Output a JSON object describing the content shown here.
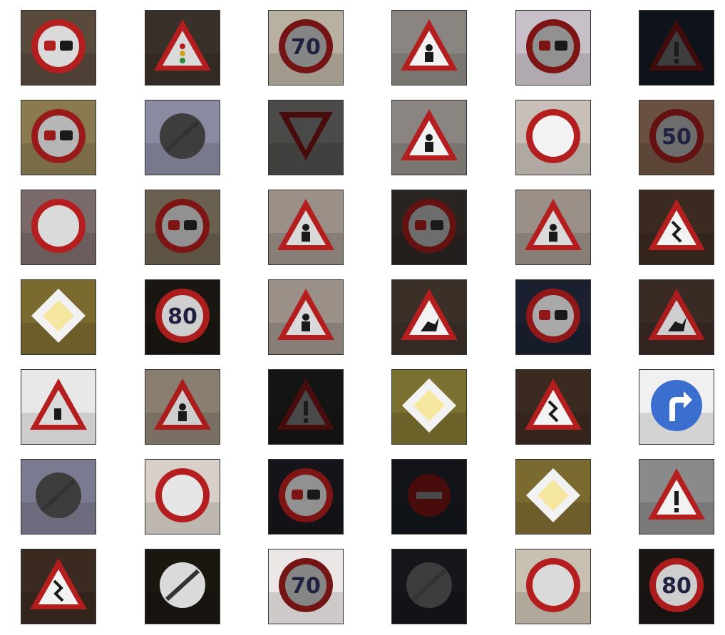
{
  "grid": {
    "rows": 7,
    "cols": 6,
    "cells": [
      {
        "sign": "no-overtaking-trucks",
        "bg": "#5a4a3c",
        "light": 0.9
      },
      {
        "sign": "traffic-signals",
        "bg": "#3a302a",
        "light": 0.9
      },
      {
        "sign": "speed-limit",
        "text": "70",
        "bg": "#b8b0a0",
        "light": 0.55
      },
      {
        "sign": "children-crossing",
        "bg": "#8a8580",
        "light": 1.0
      },
      {
        "sign": "no-overtaking-trucks",
        "bg": "#c8c0c8",
        "light": 0.6
      },
      {
        "sign": "general-caution",
        "bg": "#0f141c",
        "light": 0.25
      },
      {
        "sign": "no-overtaking",
        "bg": "#8a7a50",
        "light": 0.75
      },
      {
        "sign": "end-of-limits",
        "bg": "#8a8aa0",
        "light": 0.25
      },
      {
        "sign": "yield",
        "bg": "#4a4a48",
        "light": 0.3
      },
      {
        "sign": "children-crossing",
        "bg": "#8a8580",
        "light": 1.0
      },
      {
        "sign": "no-vehicles",
        "bg": "#c8c0b8",
        "light": 1.0
      },
      {
        "sign": "speed-limit",
        "text": "50",
        "bg": "#6a5040",
        "light": 0.45
      },
      {
        "sign": "no-vehicles",
        "bg": "#7a6a6a",
        "light": 0.9
      },
      {
        "sign": "no-overtaking",
        "bg": "#6a6050",
        "light": 0.6
      },
      {
        "sign": "children-crossing",
        "bg": "#9a9088",
        "light": 0.9
      },
      {
        "sign": "no-overtaking",
        "bg": "#2a2420",
        "light": 0.45
      },
      {
        "sign": "children-crossing",
        "bg": "#9a9088",
        "light": 0.9
      },
      {
        "sign": "double-curve",
        "bg": "#3a2a20",
        "light": 1.0
      },
      {
        "sign": "priority-road",
        "bg": "#7a6a30",
        "light": 1.0
      },
      {
        "sign": "speed-limit",
        "text": "80",
        "bg": "#1a1612",
        "light": 0.85
      },
      {
        "sign": "children-crossing",
        "bg": "#9a9088",
        "light": 0.9
      },
      {
        "sign": "wild-animals",
        "bg": "#3a3028",
        "light": 1.0
      },
      {
        "sign": "no-overtaking",
        "bg": "#1a2030",
        "light": 0.7
      },
      {
        "sign": "wild-animals",
        "bg": "#3a2a24",
        "light": 0.85
      },
      {
        "sign": "road-work",
        "bg": "#e8e8e8",
        "light": 0.9
      },
      {
        "sign": "children-crossing",
        "bg": "#8a7e70",
        "light": 0.85
      },
      {
        "sign": "general-caution",
        "bg": "#141414",
        "light": 0.3
      },
      {
        "sign": "priority-road",
        "bg": "#7a7030",
        "light": 1.0
      },
      {
        "sign": "double-curve",
        "bg": "#3a2a20",
        "light": 1.0
      },
      {
        "sign": "turn-right-ahead",
        "bg": "#f0f0f0",
        "light": 1.0
      },
      {
        "sign": "end-of-limits",
        "bg": "#7a7a90",
        "light": 0.25
      },
      {
        "sign": "no-vehicles",
        "bg": "#d8d0c8",
        "light": 0.95
      },
      {
        "sign": "no-overtaking",
        "bg": "#14141a",
        "light": 0.6
      },
      {
        "sign": "no-entry",
        "bg": "#12141a",
        "light": 0.3
      },
      {
        "sign": "priority-road",
        "bg": "#7a6a30",
        "light": 1.0
      },
      {
        "sign": "general-caution",
        "bg": "#8a8a8a",
        "light": 1.0
      },
      {
        "sign": "double-curve",
        "bg": "#3a2a20",
        "light": 1.0
      },
      {
        "sign": "end-of-limits",
        "bg": "#1a1610",
        "light": 0.9
      },
      {
        "sign": "speed-limit",
        "text": "70",
        "bg": "#ece6e6",
        "light": 0.55
      },
      {
        "sign": "end-of-limits",
        "bg": "#14161c",
        "light": 0.25
      },
      {
        "sign": "no-vehicles",
        "bg": "#c8c0b0",
        "light": 0.9
      },
      {
        "sign": "speed-limit",
        "text": "80",
        "bg": "#1a1614",
        "light": 0.85
      }
    ]
  }
}
